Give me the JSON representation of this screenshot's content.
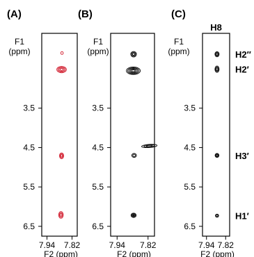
{
  "chart_data": [
    {
      "type": "scatter",
      "panel_label": "(A)",
      "ylabel": "F1\n(ppm)",
      "xlabel": "F2 (ppm)",
      "ylim": [
        6.75,
        1.6
      ],
      "xlim": [
        7.965,
        7.795
      ],
      "yticks": [
        "3.5",
        "4.5",
        "5.5",
        "6.5"
      ],
      "ytick_values": [
        3.5,
        4.5,
        5.5,
        6.5
      ],
      "xticks": [
        "7.94",
        "7.82"
      ],
      "xtick_values": [
        7.94,
        7.82
      ],
      "color": "#d42a3a",
      "peaks": [
        {
          "x": 7.868,
          "y": 2.1,
          "w": 0.004,
          "h": 0.035,
          "rings": 1,
          "fill": false
        },
        {
          "x": 7.87,
          "y": 2.52,
          "w": 0.023,
          "h": 0.08,
          "rings": 4,
          "fill": false
        },
        {
          "x": 7.87,
          "y": 4.71,
          "w": 0.01,
          "h": 0.075,
          "rings": 3,
          "fill": false
        },
        {
          "x": 7.873,
          "y": 6.21,
          "w": 0.011,
          "h": 0.085,
          "rings": 3,
          "fill": false
        }
      ]
    },
    {
      "type": "scatter",
      "panel_label": "(B)",
      "ylabel": "F1\n(ppm)",
      "xlabel": "F2 (ppm)",
      "ylim": [
        6.75,
        1.6
      ],
      "xlim": [
        7.965,
        7.795
      ],
      "yticks": [
        "3.5",
        "4.5",
        "5.5",
        "6.5"
      ],
      "ytick_values": [
        3.5,
        4.5,
        5.5,
        6.5
      ],
      "xticks": [
        "7.94",
        "7.82"
      ],
      "xtick_values": [
        7.94,
        7.82
      ],
      "color": "#111111",
      "peaks": [
        {
          "x": 7.876,
          "y": 2.13,
          "w": 0.011,
          "h": 0.07,
          "rings": 3,
          "fill": false
        },
        {
          "x": 7.877,
          "y": 2.55,
          "w": 0.027,
          "h": 0.095,
          "rings": 5,
          "fill": false
        },
        {
          "x": 7.874,
          "y": 4.7,
          "w": 0.009,
          "h": 0.05,
          "rings": 2,
          "fill": false
        },
        {
          "x": 7.876,
          "y": 6.22,
          "w": 0.01,
          "h": 0.055,
          "rings": 3,
          "fill": true
        },
        {
          "x": 7.815,
          "y": 4.46,
          "w": 0.03,
          "h": 0.04,
          "rings": 3,
          "fill": false,
          "tilt": -4
        }
      ]
    },
    {
      "type": "scatter",
      "panel_label": "(C)",
      "top_label": "H8",
      "ylabel": "F1\n(ppm)",
      "xlabel": "F2 (ppm)",
      "ylim": [
        6.75,
        1.6
      ],
      "xlim": [
        7.965,
        7.795
      ],
      "yticks": [
        "3.5",
        "4.5",
        "5.5",
        "6.5"
      ],
      "ytick_values": [
        3.5,
        4.5,
        5.5,
        6.5
      ],
      "xticks": [
        "7.94",
        "7.82"
      ],
      "xtick_values": [
        7.94,
        7.82
      ],
      "color": "#111111",
      "peaks": [
        {
          "x": 7.874,
          "y": 2.13,
          "w": 0.013,
          "h": 0.065,
          "rings": 3,
          "fill": false
        },
        {
          "x": 7.874,
          "y": 2.51,
          "w": 0.013,
          "h": 0.08,
          "rings": 3,
          "fill": false
        },
        {
          "x": 7.874,
          "y": 4.7,
          "w": 0.012,
          "h": 0.05,
          "rings": 3,
          "fill": false
        },
        {
          "x": 7.874,
          "y": 6.23,
          "w": 0.01,
          "h": 0.04,
          "rings": 2,
          "fill": false
        }
      ],
      "right_labels": [
        {
          "text": "H2″",
          "y": 2.13
        },
        {
          "text": "H2′",
          "y": 2.51
        },
        {
          "text": "H3′",
          "y": 4.7
        },
        {
          "text": "H1′",
          "y": 6.23
        }
      ]
    }
  ]
}
